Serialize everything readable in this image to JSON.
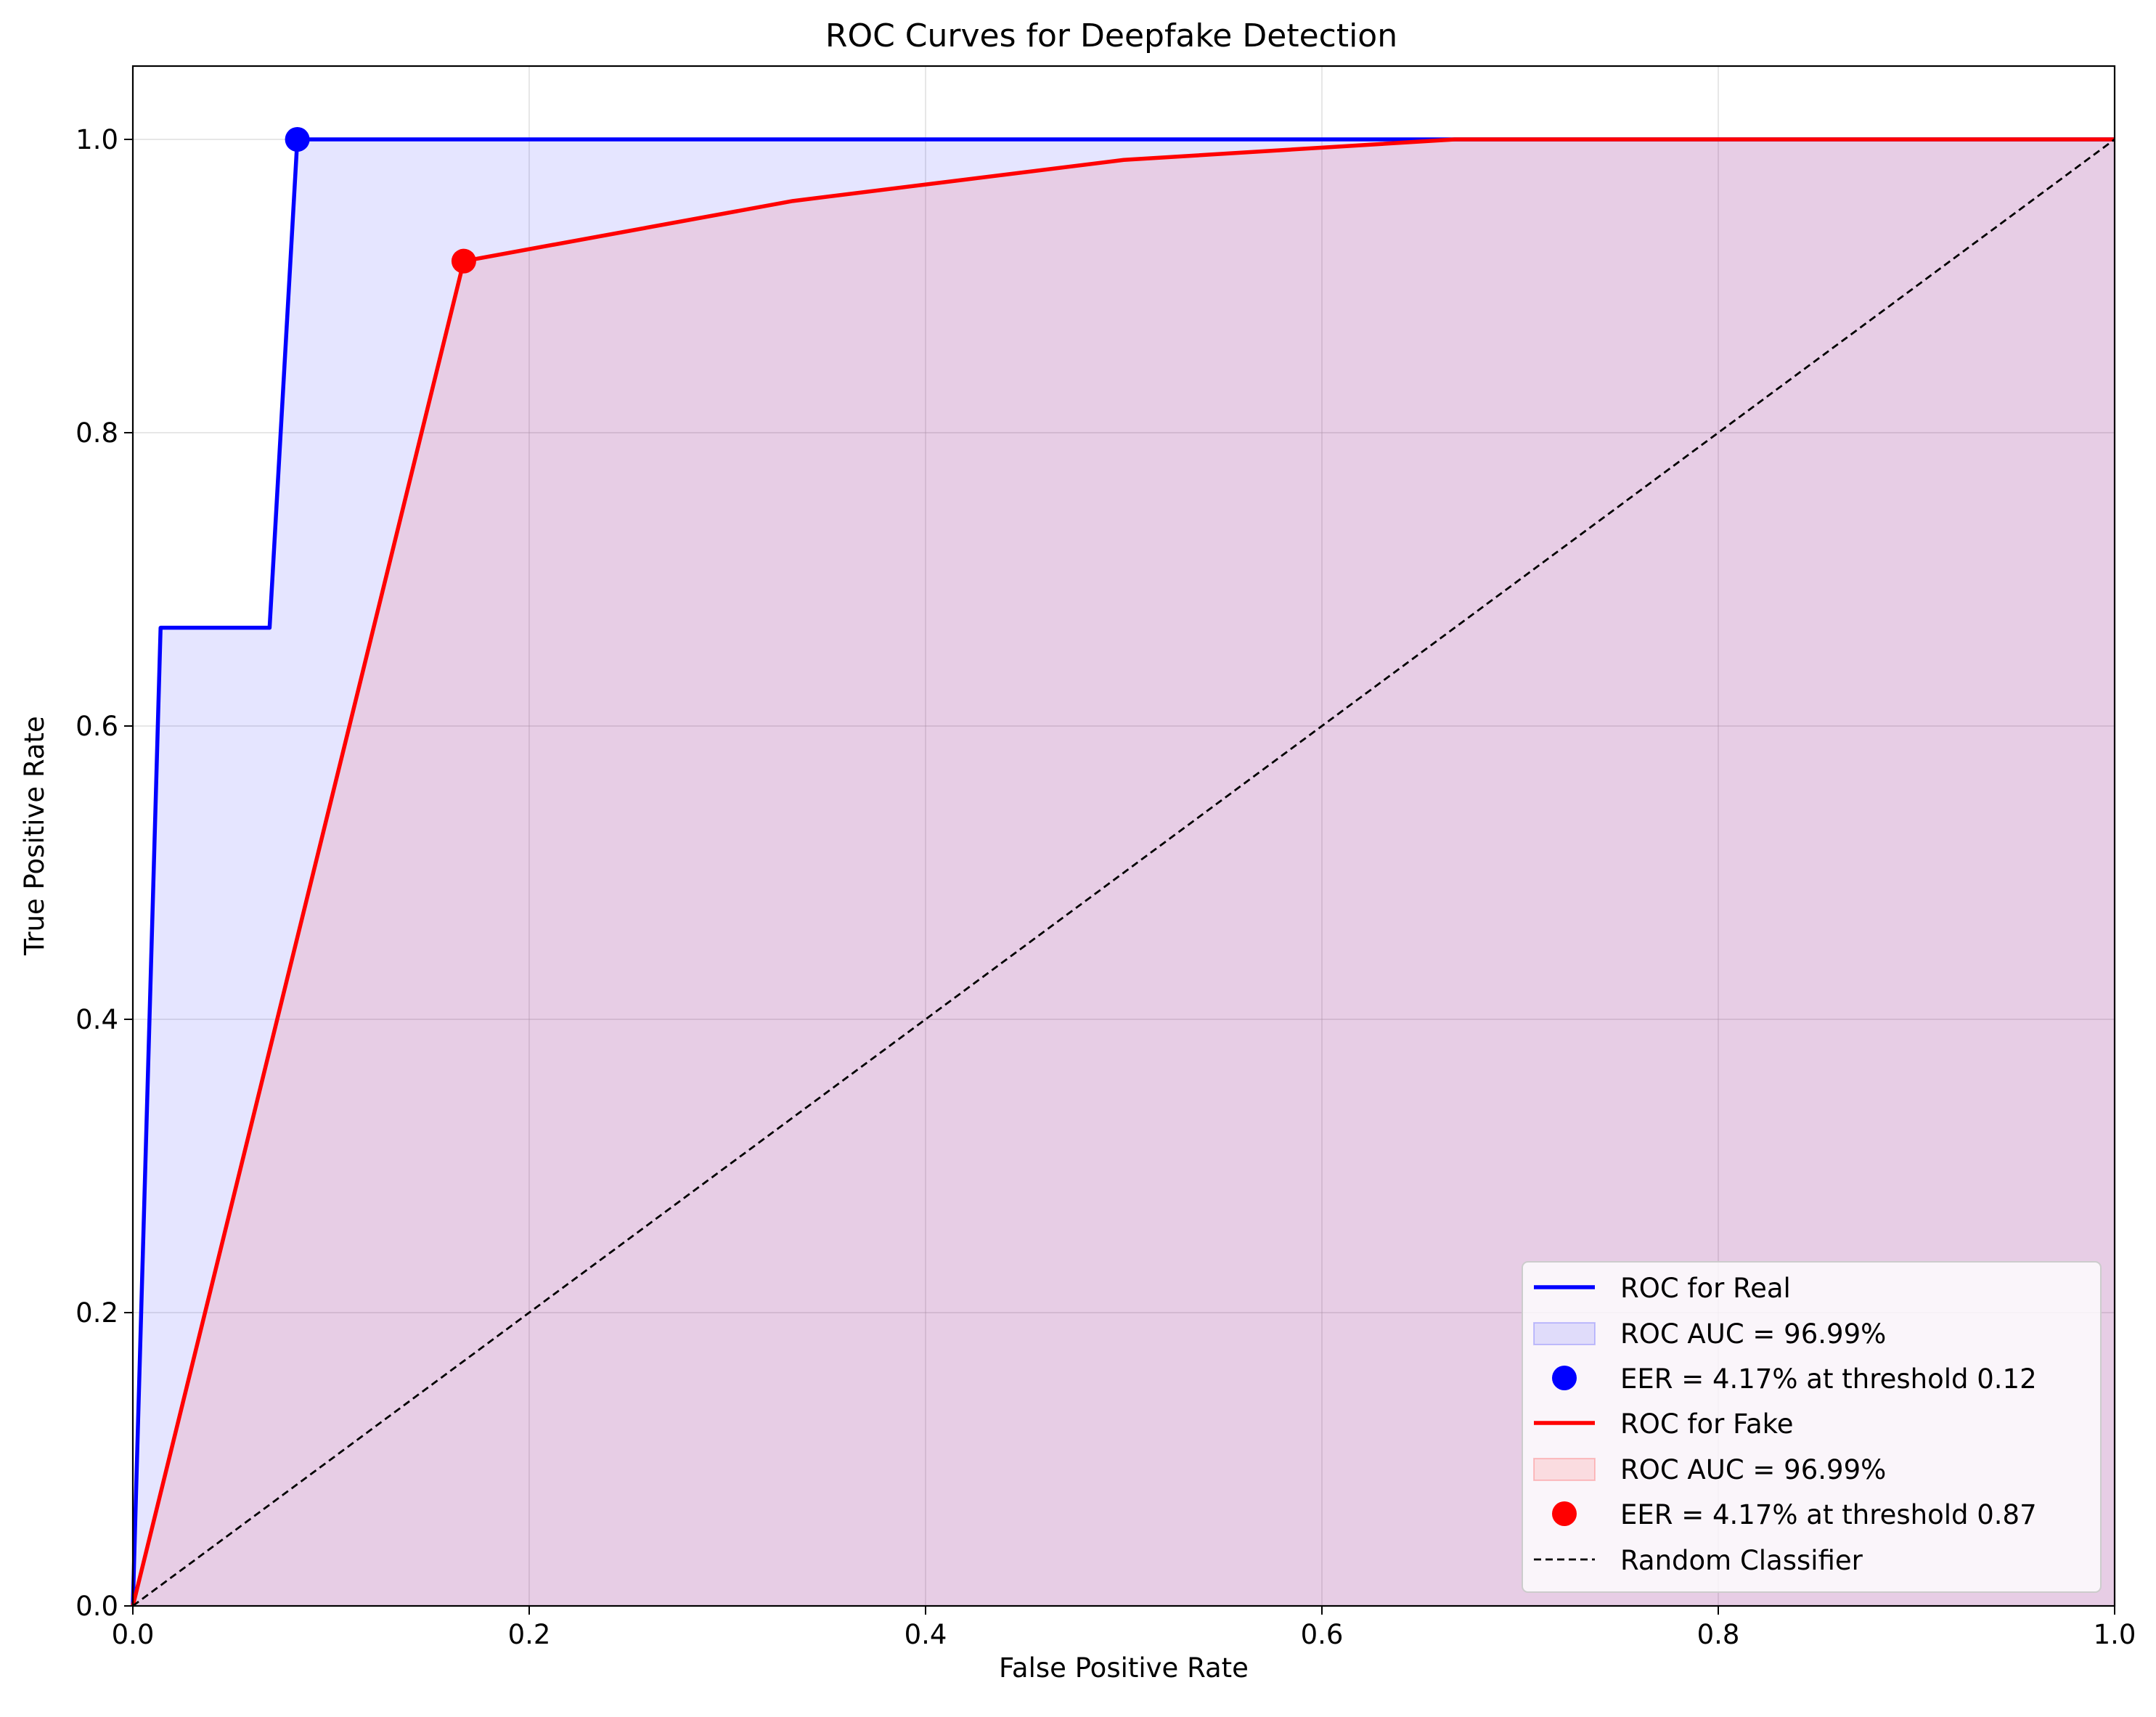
{
  "chart_data": {
    "type": "line",
    "title": "ROC Curves for Deepfake Detection",
    "xlabel": "False Positive Rate",
    "ylabel": "True Positive Rate",
    "xlim": [
      0.0,
      1.0
    ],
    "ylim": [
      0.0,
      1.05
    ],
    "x_ticks": [
      0.0,
      0.2,
      0.4,
      0.6,
      0.8,
      1.0
    ],
    "y_ticks": [
      0.0,
      0.2,
      0.4,
      0.6,
      0.8,
      1.0
    ],
    "x_tick_labels": [
      "0.0",
      "0.2",
      "0.4",
      "0.6",
      "0.8",
      "1.0"
    ],
    "y_tick_labels": [
      "0.0",
      "0.2",
      "0.4",
      "0.6",
      "0.8",
      "1.0"
    ],
    "grid": true,
    "legend_position": "lower-right",
    "series": [
      {
        "name": "ROC for Real",
        "color": "#0000ff",
        "fill_color": "#0000ff",
        "fill_opacity": 0.1,
        "x": [
          0.0,
          0.014,
          0.069,
          0.083,
          1.0
        ],
        "y": [
          0.0,
          0.667,
          0.667,
          1.0,
          1.0
        ],
        "auc_label": "ROC AUC = 96.99%",
        "eer_label": "EER = 4.17% at threshold 0.12",
        "eer_point": [
          0.083,
          1.0
        ]
      },
      {
        "name": "ROC for Fake",
        "color": "#ff0000",
        "fill_color": "#ff0000",
        "fill_opacity": 0.1,
        "x": [
          0.0,
          0.167,
          0.333,
          0.5,
          0.667,
          1.0
        ],
        "y": [
          0.0,
          0.917,
          0.958,
          0.986,
          1.0,
          1.0
        ],
        "auc_label": "ROC AUC = 96.99%",
        "eer_label": "EER = 4.17% at threshold 0.87",
        "eer_point": [
          0.167,
          0.917
        ]
      }
    ],
    "reference_line": {
      "name": "Random Classifier",
      "color": "#000000",
      "style": "dashed",
      "x": [
        0.0,
        1.0
      ],
      "y": [
        0.0,
        1.0
      ]
    }
  }
}
